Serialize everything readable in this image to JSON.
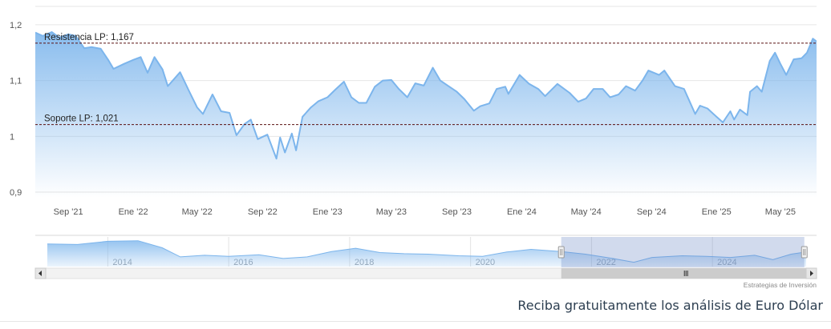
{
  "chart_data": {
    "type": "area",
    "y_ticks": [
      "1,2",
      "1,1",
      "1",
      "0,9"
    ],
    "y_tick_values": [
      1.2,
      1.1,
      1.0,
      0.9
    ],
    "ylim": [
      0.89,
      1.23
    ],
    "x_ticks": [
      "Sep '21",
      "Ene '22",
      "May '22",
      "Sep '22",
      "Ene '23",
      "May '23",
      "Sep '23",
      "Ene '24",
      "May '24",
      "Sep '24",
      "Ene '25",
      "May '25"
    ],
    "x_tick_dates": [
      "2021-09-01",
      "2022-01-01",
      "2022-05-01",
      "2022-09-01",
      "2023-01-01",
      "2023-05-01",
      "2023-09-01",
      "2024-01-01",
      "2024-05-01",
      "2024-09-01",
      "2025-01-01",
      "2025-05-01"
    ],
    "x_range": [
      "2021-07-01",
      "2025-07-08"
    ],
    "series": [
      {
        "points": [
          [
            "2021-07-01",
            1.186
          ],
          [
            "2021-07-15",
            1.18
          ],
          [
            "2021-08-01",
            1.187
          ],
          [
            "2021-08-15",
            1.177
          ],
          [
            "2021-09-01",
            1.183
          ],
          [
            "2021-09-15",
            1.18
          ],
          [
            "2021-10-01",
            1.158
          ],
          [
            "2021-10-15",
            1.16
          ],
          [
            "2021-11-01",
            1.157
          ],
          [
            "2021-11-15",
            1.137
          ],
          [
            "2021-11-25",
            1.121
          ],
          [
            "2021-12-15",
            1.13
          ],
          [
            "2022-01-01",
            1.137
          ],
          [
            "2022-01-15",
            1.142
          ],
          [
            "2022-01-28",
            1.114
          ],
          [
            "2022-02-10",
            1.142
          ],
          [
            "2022-02-25",
            1.12
          ],
          [
            "2022-03-07",
            1.09
          ],
          [
            "2022-03-30",
            1.115
          ],
          [
            "2022-04-15",
            1.083
          ],
          [
            "2022-05-01",
            1.052
          ],
          [
            "2022-05-12",
            1.04
          ],
          [
            "2022-05-30",
            1.075
          ],
          [
            "2022-06-15",
            1.045
          ],
          [
            "2022-07-01",
            1.042
          ],
          [
            "2022-07-14",
            1.002
          ],
          [
            "2022-07-29",
            1.022
          ],
          [
            "2022-08-10",
            1.03
          ],
          [
            "2022-08-23",
            0.995
          ],
          [
            "2022-09-10",
            1.003
          ],
          [
            "2022-09-27",
            0.96
          ],
          [
            "2022-10-04",
            0.998
          ],
          [
            "2022-10-13",
            0.971
          ],
          [
            "2022-10-26",
            1.005
          ],
          [
            "2022-11-03",
            0.975
          ],
          [
            "2022-11-15",
            1.035
          ],
          [
            "2022-12-01",
            1.052
          ],
          [
            "2022-12-15",
            1.063
          ],
          [
            "2023-01-01",
            1.07
          ],
          [
            "2023-01-15",
            1.083
          ],
          [
            "2023-02-01",
            1.098
          ],
          [
            "2023-02-15",
            1.07
          ],
          [
            "2023-03-01",
            1.06
          ],
          [
            "2023-03-15",
            1.06
          ],
          [
            "2023-03-31",
            1.089
          ],
          [
            "2023-04-15",
            1.1
          ],
          [
            "2023-05-01",
            1.101
          ],
          [
            "2023-05-15",
            1.085
          ],
          [
            "2023-05-31",
            1.07
          ],
          [
            "2023-06-15",
            1.095
          ],
          [
            "2023-07-01",
            1.091
          ],
          [
            "2023-07-18",
            1.123
          ],
          [
            "2023-08-01",
            1.1
          ],
          [
            "2023-08-15",
            1.091
          ],
          [
            "2023-09-01",
            1.08
          ],
          [
            "2023-09-15",
            1.067
          ],
          [
            "2023-10-03",
            1.046
          ],
          [
            "2023-10-15",
            1.054
          ],
          [
            "2023-11-01",
            1.059
          ],
          [
            "2023-11-15",
            1.085
          ],
          [
            "2023-12-01",
            1.089
          ],
          [
            "2023-12-07",
            1.076
          ],
          [
            "2023-12-28",
            1.11
          ],
          [
            "2024-01-15",
            1.094
          ],
          [
            "2024-02-01",
            1.085
          ],
          [
            "2024-02-14",
            1.072
          ],
          [
            "2024-03-08",
            1.094
          ],
          [
            "2024-03-31",
            1.078
          ],
          [
            "2024-04-16",
            1.062
          ],
          [
            "2024-05-01",
            1.068
          ],
          [
            "2024-05-15",
            1.085
          ],
          [
            "2024-06-01",
            1.085
          ],
          [
            "2024-06-15",
            1.07
          ],
          [
            "2024-07-01",
            1.075
          ],
          [
            "2024-07-15",
            1.09
          ],
          [
            "2024-08-01",
            1.082
          ],
          [
            "2024-08-15",
            1.1
          ],
          [
            "2024-08-26",
            1.118
          ],
          [
            "2024-09-15",
            1.11
          ],
          [
            "2024-09-25",
            1.118
          ],
          [
            "2024-10-15",
            1.09
          ],
          [
            "2024-11-01",
            1.085
          ],
          [
            "2024-11-15",
            1.055
          ],
          [
            "2024-11-22",
            1.04
          ],
          [
            "2024-12-01",
            1.055
          ],
          [
            "2024-12-15",
            1.05
          ],
          [
            "2025-01-01",
            1.035
          ],
          [
            "2025-01-13",
            1.025
          ],
          [
            "2025-01-27",
            1.045
          ],
          [
            "2025-02-03",
            1.03
          ],
          [
            "2025-02-14",
            1.048
          ],
          [
            "2025-02-28",
            1.038
          ],
          [
            "2025-03-05",
            1.08
          ],
          [
            "2025-03-18",
            1.09
          ],
          [
            "2025-03-27",
            1.08
          ],
          [
            "2025-04-11",
            1.135
          ],
          [
            "2025-04-21",
            1.15
          ],
          [
            "2025-05-01",
            1.13
          ],
          [
            "2025-05-12",
            1.11
          ],
          [
            "2025-05-26",
            1.138
          ],
          [
            "2025-06-10",
            1.14
          ],
          [
            "2025-06-20",
            1.15
          ],
          [
            "2025-07-01",
            1.175
          ],
          [
            "2025-07-08",
            1.17
          ]
        ]
      }
    ],
    "annotations": [
      {
        "label": "Resistencia LP: 1,167",
        "value": 1.167
      },
      {
        "label": "Soporte LP: 1,021",
        "value": 1.021
      }
    ],
    "line_color": "#7cb5ec",
    "level_color": "#5a1010",
    "navigator": {
      "years": [
        "2014",
        "2016",
        "2018",
        "2020",
        "2022",
        "2024"
      ],
      "year_values": [
        2014,
        2016,
        2018,
        2020,
        2022,
        2024
      ],
      "x_range": [
        2013.0,
        2025.55
      ],
      "selected_range": [
        2021.5,
        2025.52
      ],
      "points": [
        [
          2013.0,
          1.32
        ],
        [
          2013.5,
          1.31
        ],
        [
          2014.0,
          1.37
        ],
        [
          2014.5,
          1.38
        ],
        [
          2014.9,
          1.25
        ],
        [
          2015.2,
          1.08
        ],
        [
          2015.6,
          1.11
        ],
        [
          2016.0,
          1.09
        ],
        [
          2016.5,
          1.12
        ],
        [
          2016.9,
          1.05
        ],
        [
          2017.3,
          1.08
        ],
        [
          2017.7,
          1.18
        ],
        [
          2018.1,
          1.24
        ],
        [
          2018.5,
          1.16
        ],
        [
          2018.9,
          1.14
        ],
        [
          2019.3,
          1.13
        ],
        [
          2019.8,
          1.1
        ],
        [
          2020.2,
          1.09
        ],
        [
          2020.6,
          1.17
        ],
        [
          2021.0,
          1.22
        ],
        [
          2021.5,
          1.18
        ],
        [
          2021.9,
          1.13
        ],
        [
          2022.3,
          1.06
        ],
        [
          2022.7,
          0.98
        ],
        [
          2023.0,
          1.07
        ],
        [
          2023.5,
          1.1
        ],
        [
          2023.9,
          1.09
        ],
        [
          2024.3,
          1.07
        ],
        [
          2024.7,
          1.11
        ],
        [
          2025.0,
          1.03
        ],
        [
          2025.3,
          1.13
        ],
        [
          2025.55,
          1.17
        ]
      ],
      "ylim": [
        0.9,
        1.45
      ]
    },
    "credit": "Estrategias de Inversión"
  },
  "footer": {
    "cta": "Reciba gratuitamente los análisis de Euro Dólar"
  }
}
